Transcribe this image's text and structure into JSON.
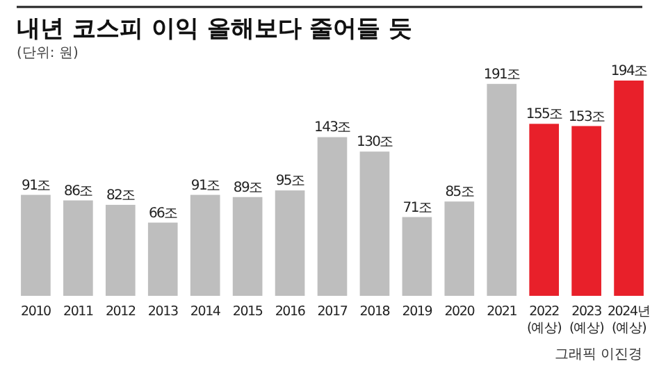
{
  "chart_data": {
    "type": "bar",
    "title": "내년 코스피 이익 올해보다 줄어들 듯",
    "subtitle": "(단위: 원)",
    "categories": [
      "2010",
      "2011",
      "2012",
      "2013",
      "2014",
      "2015",
      "2016",
      "2017",
      "2018",
      "2019",
      "2020",
      "2021",
      "2022\n(예상)",
      "2023\n(예상)",
      "2024년\n(예상)"
    ],
    "values": [
      91,
      86,
      82,
      66,
      91,
      89,
      95,
      143,
      130,
      71,
      85,
      191,
      155,
      153,
      194
    ],
    "value_labels": [
      "91조",
      "86조",
      "82조",
      "66조",
      "91조",
      "89조",
      "95조",
      "143조",
      "130조",
      "71조",
      "85조",
      "191조",
      "155조",
      "153조",
      "194조"
    ],
    "colors": [
      "#bebebe",
      "#bebebe",
      "#bebebe",
      "#bebebe",
      "#bebebe",
      "#bebebe",
      "#bebebe",
      "#bebebe",
      "#bebebe",
      "#bebebe",
      "#bebebe",
      "#bebebe",
      "#e8202a",
      "#e8202a",
      "#e8202a"
    ],
    "annotations": [
      "그래픽 이진경"
    ]
  }
}
